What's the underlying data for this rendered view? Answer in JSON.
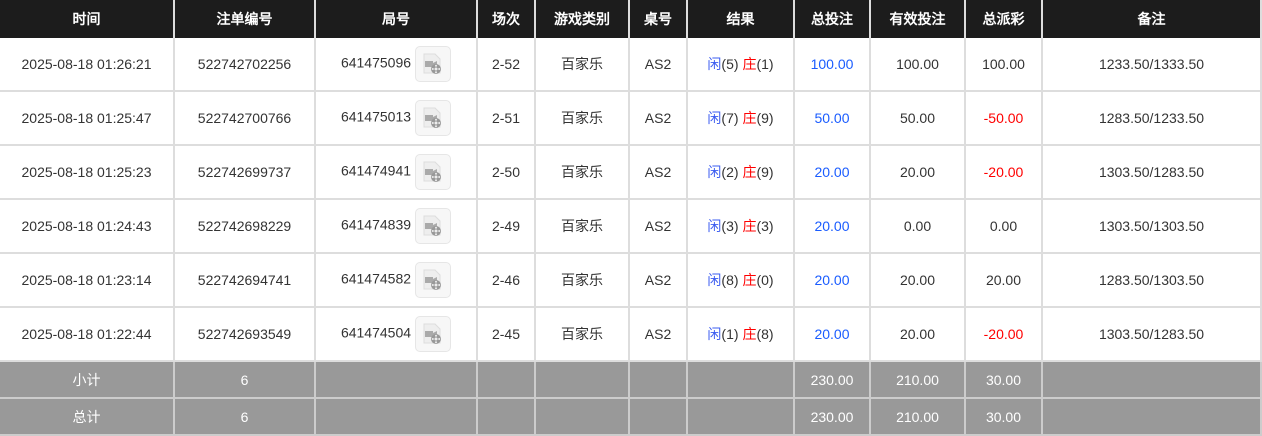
{
  "headers": [
    "时间",
    "注单编号",
    "局号",
    "场次",
    "游戏类别",
    "桌号",
    "结果",
    "总投注",
    "有效投注",
    "总派彩",
    "备注"
  ],
  "rows": [
    {
      "time": "2025-08-18 01:26:21",
      "order": "522742702256",
      "round": "641475096",
      "session": "2-52",
      "game": "百家乐",
      "table": "AS2",
      "player": "闲",
      "player_pts": "(5)",
      "banker": "庄",
      "banker_pts": "(1)",
      "bet": "100.00",
      "valid": "100.00",
      "payout": "100.00",
      "neg": false,
      "note": "1233.50/1333.50"
    },
    {
      "time": "2025-08-18 01:25:47",
      "order": "522742700766",
      "round": "641475013",
      "session": "2-51",
      "game": "百家乐",
      "table": "AS2",
      "player": "闲",
      "player_pts": "(7)",
      "banker": "庄",
      "banker_pts": "(9)",
      "bet": "50.00",
      "valid": "50.00",
      "payout": "-50.00",
      "neg": true,
      "note": "1283.50/1233.50"
    },
    {
      "time": "2025-08-18 01:25:23",
      "order": "522742699737",
      "round": "641474941",
      "session": "2-50",
      "game": "百家乐",
      "table": "AS2",
      "player": "闲",
      "player_pts": "(2)",
      "banker": "庄",
      "banker_pts": "(9)",
      "bet": "20.00",
      "valid": "20.00",
      "payout": "-20.00",
      "neg": true,
      "note": "1303.50/1283.50"
    },
    {
      "time": "2025-08-18 01:24:43",
      "order": "522742698229",
      "round": "641474839",
      "session": "2-49",
      "game": "百家乐",
      "table": "AS2",
      "player": "闲",
      "player_pts": "(3)",
      "banker": "庄",
      "banker_pts": "(3)",
      "bet": "20.00",
      "valid": "0.00",
      "payout": "0.00",
      "neg": false,
      "note": "1303.50/1303.50"
    },
    {
      "time": "2025-08-18 01:23:14",
      "order": "522742694741",
      "round": "641474582",
      "session": "2-46",
      "game": "百家乐",
      "table": "AS2",
      "player": "闲",
      "player_pts": "(8)",
      "banker": "庄",
      "banker_pts": "(0)",
      "bet": "20.00",
      "valid": "20.00",
      "payout": "20.00",
      "neg": false,
      "note": "1283.50/1303.50"
    },
    {
      "time": "2025-08-18 01:22:44",
      "order": "522742693549",
      "round": "641474504",
      "session": "2-45",
      "game": "百家乐",
      "table": "AS2",
      "player": "闲",
      "player_pts": "(1)",
      "banker": "庄",
      "banker_pts": "(8)",
      "bet": "20.00",
      "valid": "20.00",
      "payout": "-20.00",
      "neg": true,
      "note": "1303.50/1283.50"
    }
  ],
  "subtotal": {
    "label": "小计",
    "count": "6",
    "bet": "230.00",
    "valid": "210.00",
    "payout": "30.00"
  },
  "total": {
    "label": "总计",
    "count": "6",
    "bet": "230.00",
    "valid": "210.00",
    "payout": "30.00"
  },
  "icons": {
    "replay": "video-replay-icon"
  }
}
